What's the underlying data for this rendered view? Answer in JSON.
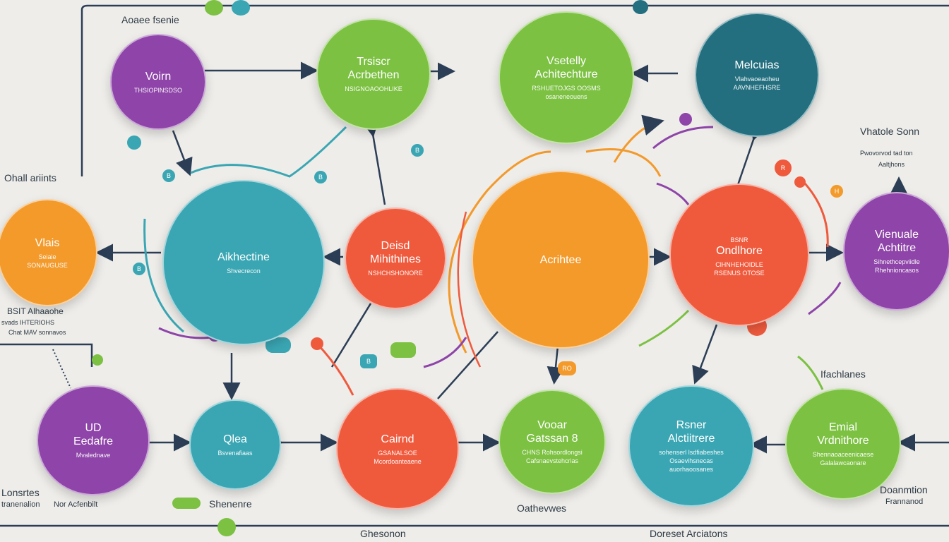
{
  "colors": {
    "purple": "#8e44a8",
    "green": "#7cc142",
    "teal_dark": "#236f7f",
    "teal": "#3aa6b3",
    "orange": "#f39a2b",
    "red": "#ef5a3d",
    "navy": "#2c3e56",
    "background": "#eeedea"
  },
  "header": {
    "title": "Aoaee fsenie"
  },
  "labels": {
    "overall": "Ohall ariints",
    "top_right_title": "Vhatole Sonn",
    "top_right_line2": "Pwovorvod tad ton",
    "top_right_line3": "Aaltjhons",
    "left_mid_1": "BSIT Alhaaohe",
    "left_mid_2": "svads IHTERIOHS",
    "left_mid_3": "Chat MAV sonnavos",
    "bottom_left_1": "Lonsrtes",
    "bottom_left_2": "tranenalion",
    "bottom_left_3": "Nor Acfenbilt",
    "bottom_green": "Shenenre",
    "bottom_center": "Ghesonon",
    "bottom_mid": "Oathevwes",
    "bottom_right_center": "Doreset Arciatons",
    "right_mid": "Ifachlanes",
    "right_bottom_1": "Doanmtion",
    "right_bottom_2": "Frannanod"
  },
  "nodes": {
    "n_purple_top": {
      "t1": "Voirn",
      "sub": "THSIOPINSDSO"
    },
    "n_green_top1": {
      "t1": "Trsiscr",
      "t2": "Acrbethen",
      "sub": "NSIGNOAOOHLIKE"
    },
    "n_green_top2": {
      "t1": "Vsetelly",
      "t2": "Achitechture",
      "sub": "RSHUETOJGS OOSMS",
      "sub2": "osaneneouens"
    },
    "n_teal_top": {
      "t1": "Melcuias",
      "sub": "Vlahvaoeaoheu",
      "sub2": "AAVNHEFHSRE"
    },
    "n_orange_left": {
      "t1": "Vlais",
      "sub": "Seiaie",
      "sub2": "SONAUGUSE"
    },
    "n_teal_big": {
      "t1": "Aikhectine",
      "sub": "Shvecrecon"
    },
    "n_red_center": {
      "t1": "Deisd",
      "t2": "Mihithines",
      "sub": "NSHCHSHONORE"
    },
    "n_orange_big": {
      "t1": "Acrihtee"
    },
    "n_red_right": {
      "t1": "Ondlhore",
      "sub": "BSNR",
      "sub2": "ClHNHEHOIDLE",
      "sub3": "RSENUS OTOSE"
    },
    "n_purple_right": {
      "t1": "Vienuale",
      "t2": "Achtitre",
      "sub": "Sihnethcepviidle",
      "sub2": "Rhehnioncasos"
    },
    "n_purple_bl": {
      "t1": "UD",
      "t2": "Eedafre",
      "sub": "Mvalednave"
    },
    "n_teal_bl": {
      "t1": "Qlea",
      "sub": "Bsvenafiaas"
    },
    "n_red_bc": {
      "t1": "Cairnd",
      "sub": "GSANALSOE",
      "sub2": "Mcordoanteaene"
    },
    "n_green_bc": {
      "t1": "Vooar",
      "t2": "Gatssan 8",
      "sub": "CHNS Rohsordlongsi",
      "sub2": "Cafsnaevstehcrias"
    },
    "n_teal_br": {
      "t1": "Rsner",
      "t2": "Alctiitrere",
      "sub": "sohenserl lsdfiabeshes",
      "sub2": "Osaevihsnecas",
      "sub3": "auorhaoosanes"
    },
    "n_green_br": {
      "t1": "Emial",
      "t2": "Vrdnithore",
      "sub": "Shennaoaceenicaese",
      "sub2": "Galalawcaonare"
    }
  },
  "badges": [
    "RO",
    "B",
    "B",
    "R",
    "B",
    "H",
    "B",
    "B"
  ]
}
